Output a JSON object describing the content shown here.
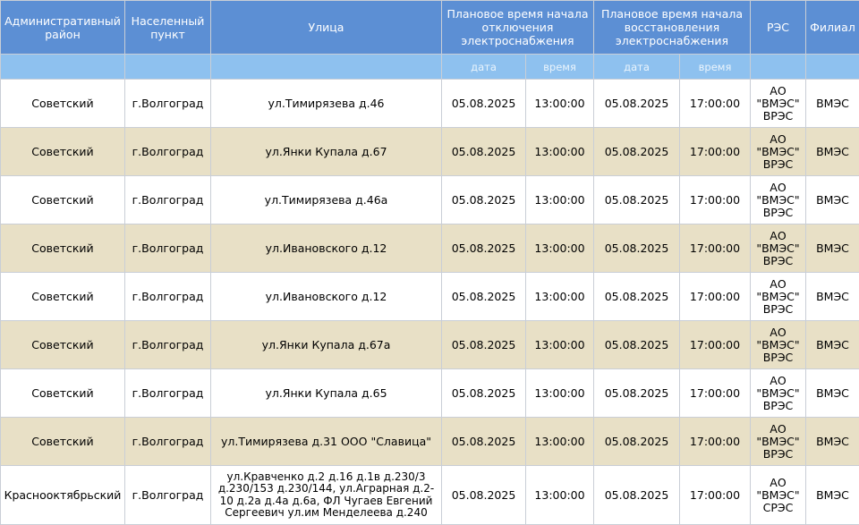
{
  "table": {
    "headers": {
      "district": "Административный район",
      "locality": "Населенный пункт",
      "street": "Улица",
      "off_start": "Плановое время начала отключения электроснабжения",
      "restore_start": "Плановое время начала восстановления электроснабжения",
      "res": "РЭС",
      "branch": "Филиал"
    },
    "subheaders": {
      "off_date": "дата",
      "off_time": "время",
      "restore_date": "дата",
      "restore_time": "время"
    },
    "rows": [
      {
        "district": "Советский",
        "locality": "г.Волгоград",
        "street": "ул.Тимирязева д.46",
        "off_date": "05.08.2025",
        "off_time": "13:00:00",
        "restore_date": "05.08.2025",
        "restore_time": "17:00:00",
        "res": "АО \"ВМЭС\" ВРЭС",
        "branch": "ВМЭС"
      },
      {
        "district": "Советский",
        "locality": "г.Волгоград",
        "street": "ул.Янки Купала д.67",
        "off_date": "05.08.2025",
        "off_time": "13:00:00",
        "restore_date": "05.08.2025",
        "restore_time": "17:00:00",
        "res": "АО \"ВМЭС\" ВРЭС",
        "branch": "ВМЭС"
      },
      {
        "district": "Советский",
        "locality": "г.Волгоград",
        "street": "ул.Тимирязева д.46а",
        "off_date": "05.08.2025",
        "off_time": "13:00:00",
        "restore_date": "05.08.2025",
        "restore_time": "17:00:00",
        "res": "АО \"ВМЭС\" ВРЭС",
        "branch": "ВМЭС"
      },
      {
        "district": "Советский",
        "locality": "г.Волгоград",
        "street": "ул.Ивановского д.12",
        "off_date": "05.08.2025",
        "off_time": "13:00:00",
        "restore_date": "05.08.2025",
        "restore_time": "17:00:00",
        "res": "АО \"ВМЭС\" ВРЭС",
        "branch": "ВМЭС"
      },
      {
        "district": "Советский",
        "locality": "г.Волгоград",
        "street": "ул.Ивановского д.12",
        "off_date": "05.08.2025",
        "off_time": "13:00:00",
        "restore_date": "05.08.2025",
        "restore_time": "17:00:00",
        "res": "АО \"ВМЭС\" ВРЭС",
        "branch": "ВМЭС"
      },
      {
        "district": "Советский",
        "locality": "г.Волгоград",
        "street": "ул.Янки Купала д.67а",
        "off_date": "05.08.2025",
        "off_time": "13:00:00",
        "restore_date": "05.08.2025",
        "restore_time": "17:00:00",
        "res": "АО \"ВМЭС\" ВРЭС",
        "branch": "ВМЭС"
      },
      {
        "district": "Советский",
        "locality": "г.Волгоград",
        "street": "ул.Янки Купала д.65",
        "off_date": "05.08.2025",
        "off_time": "13:00:00",
        "restore_date": "05.08.2025",
        "restore_time": "17:00:00",
        "res": "АО \"ВМЭС\" ВРЭС",
        "branch": "ВМЭС"
      },
      {
        "district": "Советский",
        "locality": "г.Волгоград",
        "street": "ул.Тимирязева д.31 ООО \"Славица\"",
        "off_date": "05.08.2025",
        "off_time": "13:00:00",
        "restore_date": "05.08.2025",
        "restore_time": "17:00:00",
        "res": "АО \"ВМЭС\" ВРЭС",
        "branch": "ВМЭС"
      },
      {
        "district": "Краснооктябрьский",
        "locality": "г.Волгоград",
        "street": "ул.Кравченко д.2 д.16 д.1в д.230/3 д.230/153 д.230/144, ул.Аграрная д.2-10 д.2а д.4а д.6а, ФЛ Чугаев Евгений Сергеевич ул.им Менделеева д.240",
        "off_date": "05.08.2025",
        "off_time": "13:00:00",
        "restore_date": "05.08.2025",
        "restore_time": "17:00:00",
        "res": "АО \"ВМЭС\" СРЭС",
        "branch": "ВМЭС"
      }
    ]
  }
}
